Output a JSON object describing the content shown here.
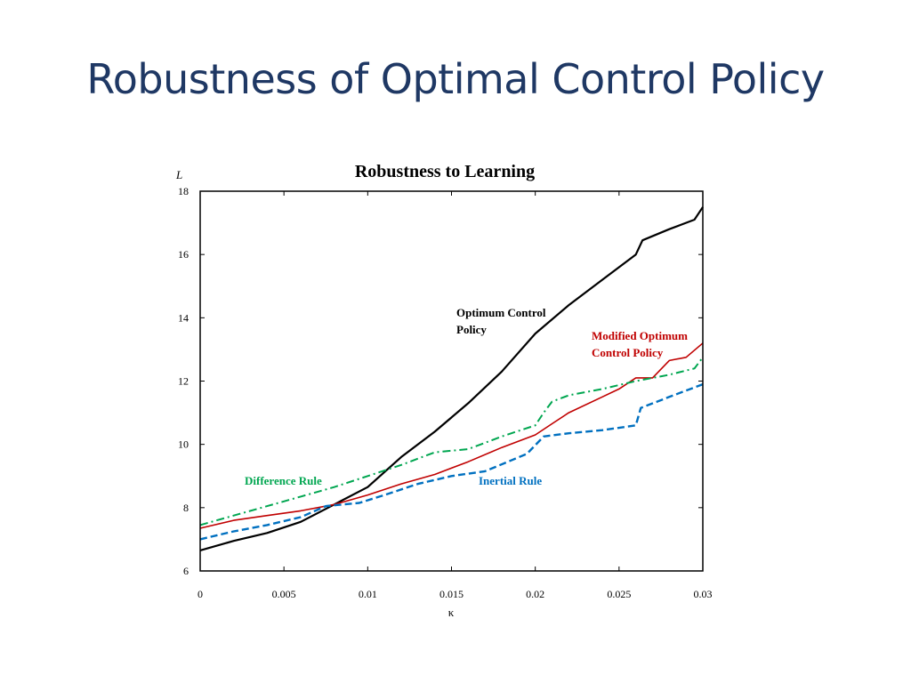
{
  "slide": {
    "title": "Robustness of Optimal Control Policy"
  },
  "chart_data": {
    "type": "line",
    "title": "Robustness to Learning",
    "xlabel": "κ",
    "ylabel": "L",
    "xlim": [
      0,
      0.03
    ],
    "ylim": [
      6,
      18
    ],
    "x_ticks": [
      "0",
      "0.005",
      "0.01",
      "0.015",
      "0.02",
      "0.025",
      "0.03"
    ],
    "y_ticks": [
      "6",
      "8",
      "10",
      "12",
      "14",
      "16",
      "18"
    ],
    "grid": false,
    "series": [
      {
        "name": "Optimum Control Policy",
        "color": "#000000",
        "style": "solid",
        "points": [
          [
            0,
            6.65
          ],
          [
            0.002,
            6.95
          ],
          [
            0.004,
            7.2
          ],
          [
            0.006,
            7.55
          ],
          [
            0.008,
            8.1
          ],
          [
            0.01,
            8.65
          ],
          [
            0.012,
            9.6
          ],
          [
            0.014,
            10.4
          ],
          [
            0.016,
            11.3
          ],
          [
            0.018,
            12.3
          ],
          [
            0.02,
            13.5
          ],
          [
            0.022,
            14.4
          ],
          [
            0.024,
            15.2
          ],
          [
            0.026,
            16.0
          ],
          [
            0.0264,
            16.45
          ],
          [
            0.028,
            16.8
          ],
          [
            0.0295,
            17.1
          ],
          [
            0.03,
            17.5
          ]
        ]
      },
      {
        "name": "Modified Optimum Control Policy",
        "color": "#c00000",
        "style": "solid",
        "points": [
          [
            0,
            7.35
          ],
          [
            0.002,
            7.6
          ],
          [
            0.004,
            7.75
          ],
          [
            0.006,
            7.9
          ],
          [
            0.008,
            8.1
          ],
          [
            0.01,
            8.4
          ],
          [
            0.012,
            8.75
          ],
          [
            0.014,
            9.05
          ],
          [
            0.016,
            9.45
          ],
          [
            0.018,
            9.9
          ],
          [
            0.02,
            10.3
          ],
          [
            0.021,
            10.65
          ],
          [
            0.022,
            11.0
          ],
          [
            0.024,
            11.5
          ],
          [
            0.025,
            11.75
          ],
          [
            0.026,
            12.1
          ],
          [
            0.027,
            12.1
          ],
          [
            0.028,
            12.65
          ],
          [
            0.029,
            12.75
          ],
          [
            0.03,
            13.2
          ]
        ]
      },
      {
        "name": "Difference Rule",
        "color": "#00a650",
        "style": "dashdot",
        "points": [
          [
            0,
            7.45
          ],
          [
            0.002,
            7.75
          ],
          [
            0.004,
            8.05
          ],
          [
            0.006,
            8.35
          ],
          [
            0.008,
            8.65
          ],
          [
            0.01,
            9.0
          ],
          [
            0.012,
            9.35
          ],
          [
            0.014,
            9.75
          ],
          [
            0.016,
            9.85
          ],
          [
            0.018,
            10.25
          ],
          [
            0.02,
            10.6
          ],
          [
            0.0205,
            11.0
          ],
          [
            0.021,
            11.35
          ],
          [
            0.022,
            11.55
          ],
          [
            0.024,
            11.75
          ],
          [
            0.026,
            12.0
          ],
          [
            0.028,
            12.2
          ],
          [
            0.0295,
            12.4
          ],
          [
            0.03,
            12.75
          ]
        ]
      },
      {
        "name": "Inertial Rule",
        "color": "#0070c0",
        "style": "dashed",
        "points": [
          [
            0,
            7.0
          ],
          [
            0.002,
            7.25
          ],
          [
            0.004,
            7.45
          ],
          [
            0.006,
            7.7
          ],
          [
            0.0075,
            8.05
          ],
          [
            0.0095,
            8.15
          ],
          [
            0.011,
            8.4
          ],
          [
            0.013,
            8.75
          ],
          [
            0.015,
            9.0
          ],
          [
            0.017,
            9.15
          ],
          [
            0.0195,
            9.7
          ],
          [
            0.0205,
            10.25
          ],
          [
            0.022,
            10.35
          ],
          [
            0.024,
            10.45
          ],
          [
            0.026,
            10.6
          ],
          [
            0.0263,
            11.15
          ],
          [
            0.028,
            11.5
          ],
          [
            0.03,
            11.9
          ]
        ]
      }
    ],
    "annotations": [
      {
        "text": "Optimum Control",
        "color": "#000000"
      },
      {
        "text": "Policy",
        "color": "#000000"
      },
      {
        "text": "Modified Optimum",
        "color": "#c00000"
      },
      {
        "text": "Control Policy",
        "color": "#c00000"
      },
      {
        "text": "Difference Rule",
        "color": "#00a650"
      },
      {
        "text": "Inertial Rule",
        "color": "#0070c0"
      }
    ]
  }
}
